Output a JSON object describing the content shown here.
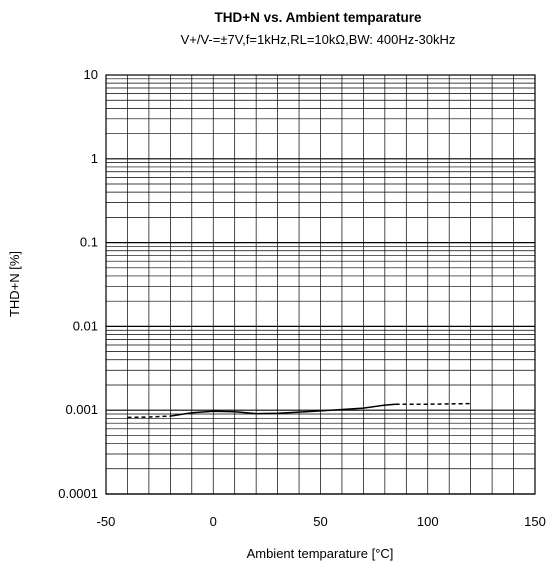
{
  "chart_data": {
    "type": "line",
    "title": "THD+N vs. Ambient temparature",
    "subtitle": "V+/V-=±7V,f=1kHz,RL=10kΩ,BW: 400Hz-30kHz",
    "xlabel": "Ambient temparature [°C]",
    "ylabel": "THD+N [%]",
    "xlim": [
      -50,
      150
    ],
    "ylim": [
      0.0001,
      10
    ],
    "yscale": "log",
    "grid": true,
    "x_ticks": [
      -50,
      0,
      50,
      100,
      150
    ],
    "x_tick_labels": [
      "-50",
      "0",
      "50",
      "100",
      "150"
    ],
    "y_ticks": [
      0.0001,
      0.001,
      0.01,
      0.1,
      1,
      10
    ],
    "y_tick_labels": [
      "0.0001",
      "0.001",
      "0.01",
      "0.1",
      "1",
      "10"
    ],
    "series": [
      {
        "style": "dashed",
        "x": [
          -40,
          -30,
          -20
        ],
        "y": [
          0.00082,
          0.00083,
          0.00085
        ]
      },
      {
        "style": "solid",
        "x": [
          -20,
          -10,
          0,
          10,
          20,
          30,
          40,
          50,
          60,
          70,
          80,
          85
        ],
        "y": [
          0.00085,
          0.00093,
          0.00097,
          0.00096,
          0.00091,
          0.00092,
          0.00095,
          0.00098,
          0.00102,
          0.00106,
          0.00115,
          0.00118
        ]
      },
      {
        "style": "dashed",
        "x": [
          85,
          100,
          110,
          120
        ],
        "y": [
          0.00118,
          0.00118,
          0.00119,
          0.0012
        ]
      }
    ]
  }
}
